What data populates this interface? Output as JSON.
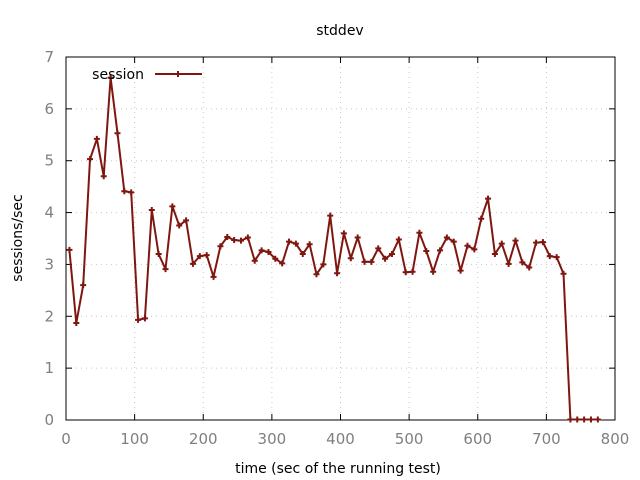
{
  "chart_data": {
    "type": "line",
    "title": "stddev",
    "xlabel": "time (sec of the running test)",
    "ylabel": "sessions/sec",
    "xlim": [
      0,
      800
    ],
    "ylim": [
      0,
      7
    ],
    "xticks": [
      0,
      100,
      200,
      300,
      400,
      500,
      600,
      700,
      800
    ],
    "yticks": [
      0,
      1,
      2,
      3,
      4,
      5,
      6,
      7
    ],
    "grid": true,
    "legend_position": "top-left",
    "series": [
      {
        "name": "session",
        "color": "#7f1710",
        "x": [
          5,
          15,
          25,
          35,
          45,
          55,
          65,
          75,
          85,
          95,
          105,
          115,
          125,
          135,
          145,
          155,
          165,
          175,
          185,
          195,
          205,
          215,
          225,
          235,
          245,
          255,
          265,
          275,
          285,
          295,
          305,
          315,
          325,
          335,
          345,
          355,
          365,
          375,
          385,
          395,
          405,
          415,
          425,
          435,
          445,
          455,
          465,
          475,
          485,
          495,
          505,
          515,
          525,
          535,
          545,
          555,
          565,
          575,
          585,
          595,
          605,
          615,
          625,
          635,
          645,
          655,
          665,
          675,
          685,
          695,
          705,
          715,
          725,
          735,
          745,
          755,
          765,
          775
        ],
        "y": [
          3.28,
          1.87,
          2.6,
          5.03,
          5.42,
          4.7,
          6.6,
          5.53,
          4.41,
          4.39,
          1.93,
          1.96,
          4.05,
          3.2,
          2.91,
          4.12,
          3.75,
          3.85,
          3.01,
          3.16,
          3.18,
          2.76,
          3.35,
          3.53,
          3.47,
          3.46,
          3.52,
          3.07,
          3.27,
          3.24,
          3.11,
          3.02,
          3.44,
          3.4,
          3.2,
          3.39,
          2.81,
          3.0,
          3.94,
          2.83,
          3.6,
          3.12,
          3.52,
          3.05,
          3.05,
          3.31,
          3.11,
          3.2,
          3.48,
          2.85,
          2.86,
          3.61,
          3.26,
          2.86,
          3.27,
          3.52,
          3.44,
          2.88,
          3.36,
          3.29,
          3.88,
          4.27,
          3.2,
          3.4,
          3.01,
          3.46,
          3.04,
          2.94,
          3.42,
          3.43,
          3.16,
          3.14,
          2.82,
          0.01,
          0.01,
          0.01,
          0.01,
          0.01
        ]
      }
    ]
  }
}
